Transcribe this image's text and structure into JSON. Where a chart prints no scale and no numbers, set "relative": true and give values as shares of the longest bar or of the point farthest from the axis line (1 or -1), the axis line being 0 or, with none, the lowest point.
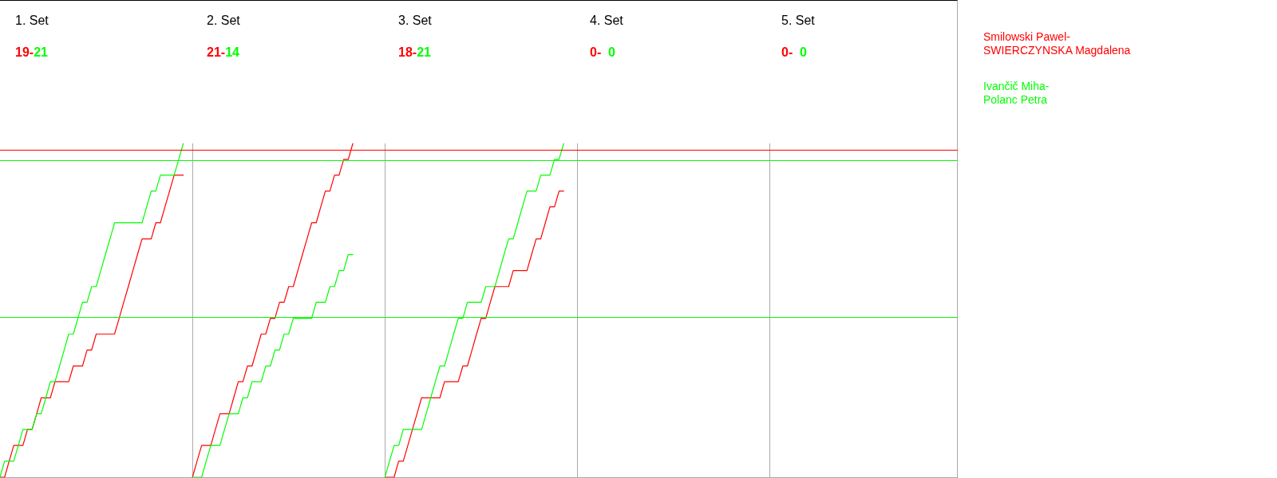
{
  "chart_data": {
    "type": "line",
    "relative": true,
    "legend": "right",
    "grid": true,
    "tick_labels": false,
    "annotations": [
      "1. Set",
      "19-21",
      "2. Set",
      "21-14",
      "3. Set",
      "18-21",
      "4. Set",
      "0-  0",
      "5. Set",
      "0-  0"
    ],
    "categories": [
      null,
      null,
      null,
      null,
      null,
      null,
      null,
      null,
      null,
      null,
      null,
      null,
      null,
      null,
      null,
      null,
      null,
      null,
      null,
      null,
      null,
      null,
      null,
      null,
      null,
      null,
      null,
      null,
      null,
      null,
      null,
      null,
      null,
      null,
      null,
      null,
      null,
      null,
      null,
      null,
      null,
      null,
      null,
      null,
      null,
      null,
      null,
      null,
      null,
      null,
      null,
      null,
      null,
      null,
      null,
      null,
      null,
      null,
      null,
      null,
      null,
      null,
      null,
      null,
      null,
      null,
      null,
      null,
      null,
      null,
      null,
      null,
      null,
      null,
      null,
      null,
      null,
      null,
      null,
      null,
      null,
      null,
      null,
      null,
      null,
      null,
      null,
      null,
      null,
      null,
      null,
      null,
      null,
      null,
      null,
      null,
      null,
      null,
      null,
      null,
      null,
      null,
      null,
      null,
      null,
      null,
      null,
      null,
      null,
      null,
      null,
      null,
      null,
      null,
      null,
      null,
      null,
      null,
      null,
      null,
      null,
      null,
      null,
      null,
      null,
      null,
      null,
      null,
      null,
      null,
      null,
      null,
      null,
      null,
      null,
      null,
      null,
      null,
      null,
      null,
      null,
      null,
      null,
      null,
      null,
      null,
      null,
      null,
      null,
      null,
      null,
      null,
      null,
      null,
      null,
      null,
      null,
      null,
      null,
      null,
      null,
      null,
      null,
      null,
      null,
      null,
      null,
      null,
      null,
      null,
      null,
      null,
      null,
      null,
      null,
      null,
      null,
      null,
      null,
      null,
      null,
      null,
      null,
      null,
      null,
      null,
      null,
      null,
      null,
      null,
      null,
      null,
      null,
      null,
      null,
      null,
      null,
      null,
      null,
      null,
      null,
      null,
      null,
      null,
      null,
      null,
      null,
      null,
      null,
      null
    ],
    "ref_lines": [
      {
        "axis": "y",
        "value": 0.976,
        "color": "#ff0000"
      },
      {
        "axis": "y",
        "value": 0.952,
        "color": "#00ff00"
      },
      {
        "axis": "y",
        "value": 0.476,
        "color": "#00ff00"
      }
    ],
    "series": [
      {
        "name": "Smilowski Pawel-\nSWIERCZYNSKA Magdalena",
        "color": "#ff0000",
        "values": [
          0,
          0,
          0.048,
          0.095,
          0.095,
          0.095,
          0.143,
          0.143,
          0.19,
          0.238,
          0.238,
          0.238,
          0.286,
          0.286,
          0.286,
          0.286,
          0.333,
          0.333,
          0.333,
          0.381,
          0.381,
          0.429,
          0.429,
          0.429,
          0.429,
          0.429,
          0.476,
          0.524,
          0.571,
          0.619,
          0.667,
          0.714,
          0.714,
          0.714,
          0.762,
          0.762,
          0.81,
          0.857,
          0.905,
          0.905,
          0.905,
          null,
          null,
          null,
          null,
          null,
          null,
          null,
          null,
          null,
          null,
          null,
          null,
          null,
          null,
          null,
          null,
          null,
          null,
          null,
          null,
          null,
          null,
          null,
          null,
          null,
          null,
          null,
          null,
          null,
          null,
          null,
          null,
          null,
          null,
          null,
          null,
          null,
          null,
          null,
          null,
          null,
          null,
          null,
          null,
          null,
          null,
          null,
          null,
          null,
          null,
          null,
          null,
          null,
          null,
          null,
          null,
          null,
          null,
          null,
          null,
          null,
          null,
          null,
          null,
          null,
          null,
          null,
          null,
          null,
          null,
          null,
          null,
          null,
          null,
          null,
          null,
          null,
          null,
          null,
          null,
          null,
          null,
          null,
          null,
          null,
          null,
          null,
          null,
          null,
          null,
          null,
          null,
          null,
          null,
          null,
          null,
          null,
          null,
          null,
          null,
          null,
          null,
          null,
          null,
          null,
          null,
          null,
          null,
          null,
          null,
          null,
          null,
          null,
          null,
          null,
          null,
          null,
          null,
          null,
          null,
          null,
          null,
          null,
          null,
          null,
          null,
          null,
          null,
          null,
          null,
          null,
          null,
          null,
          null,
          null,
          null,
          null,
          null,
          null,
          null,
          null,
          null,
          null,
          null,
          null,
          null,
          null,
          null,
          null,
          null,
          null,
          null,
          null,
          null,
          null,
          null,
          null,
          null,
          null,
          null,
          null,
          null,
          null,
          null,
          null,
          null,
          null,
          null,
          null
        ]
      },
      {
        "name": "Ivančič Miha-\nPolanc Petra",
        "color": "#00ff00",
        "values": [
          0,
          0.048,
          0.048,
          0.048,
          0.095,
          0.143,
          0.143,
          0.143,
          0.19,
          0.19,
          0.238,
          0.286,
          0.286,
          0.333,
          0.381,
          0.429,
          0.429,
          0.476,
          0.524,
          0.524,
          0.571,
          0.571,
          0.619,
          0.667,
          0.714,
          0.762,
          0.762,
          0.762,
          0.762,
          0.762,
          0.762,
          0.762,
          0.81,
          0.857,
          0.857,
          0.905,
          0.905,
          0.905,
          0.905,
          0.952,
          1,
          null,
          null,
          null,
          null,
          null,
          null,
          null,
          null,
          null,
          null,
          null,
          null,
          null,
          null,
          null,
          null,
          null,
          null,
          null,
          null,
          null,
          null,
          null,
          null,
          null,
          null,
          null,
          null,
          null,
          null,
          null,
          null,
          null,
          null,
          null,
          null,
          null,
          null,
          null,
          null,
          null,
          null,
          null,
          null,
          null,
          null,
          null,
          null,
          null,
          null,
          null,
          null,
          null,
          null,
          null,
          null,
          null,
          null,
          null,
          null,
          null,
          null,
          null,
          null,
          null,
          null,
          null,
          null,
          null,
          null,
          null,
          null,
          null,
          null,
          null,
          null,
          null,
          null,
          null,
          null,
          null,
          null,
          null,
          null,
          null,
          null,
          null,
          null,
          null,
          null,
          null,
          null,
          null,
          null,
          null,
          null,
          null,
          null,
          null,
          null,
          null,
          null,
          null,
          null,
          null,
          null,
          null,
          null,
          null,
          null,
          null,
          null,
          null,
          null,
          null,
          null,
          null,
          null,
          null,
          null,
          null,
          null,
          null,
          null,
          null,
          null,
          null,
          null,
          null,
          null,
          null,
          null,
          null,
          null,
          null,
          null,
          null,
          null,
          null,
          null,
          null,
          null,
          null,
          null,
          null,
          null,
          null,
          null,
          null,
          null,
          null,
          null,
          null,
          null,
          null,
          null,
          null,
          null,
          null,
          null,
          null,
          null,
          null,
          null,
          null,
          null,
          null,
          null,
          null
        ]
      },
      {
        "color": "#ff0000",
        "values": [
          null,
          null,
          null,
          null,
          null,
          null,
          null,
          null,
          null,
          null,
          null,
          null,
          null,
          null,
          null,
          null,
          null,
          null,
          null,
          null,
          null,
          null,
          null,
          null,
          null,
          null,
          null,
          null,
          null,
          null,
          null,
          null,
          null,
          null,
          null,
          null,
          null,
          null,
          null,
          null,
          null,
          null,
          0,
          0.048,
          0.095,
          0.095,
          0.095,
          0.143,
          0.19,
          0.19,
          0.19,
          0.238,
          0.286,
          0.286,
          0.333,
          0.333,
          0.381,
          0.429,
          0.429,
          0.476,
          0.476,
          0.524,
          0.524,
          0.571,
          0.571,
          0.619,
          0.667,
          0.714,
          0.762,
          0.762,
          0.81,
          0.857,
          0.857,
          0.905,
          0.905,
          0.952,
          0.952,
          1,
          null,
          null,
          null,
          null,
          null,
          null,
          null,
          null,
          null,
          null,
          null,
          null,
          null,
          null,
          null,
          null,
          null,
          null,
          null,
          null,
          null,
          null,
          null,
          null,
          null,
          null,
          null,
          null,
          null,
          null,
          null,
          null,
          null,
          null,
          null,
          null,
          null,
          null,
          null,
          null,
          null,
          null,
          null,
          null,
          null,
          null,
          null,
          null,
          null,
          null,
          null,
          null,
          null,
          null,
          null,
          null,
          null,
          null,
          null,
          null,
          null,
          null,
          null,
          null,
          null,
          null,
          null,
          null,
          null,
          null,
          null,
          null,
          null,
          null,
          null,
          null,
          null,
          null,
          null,
          null,
          null,
          null,
          null,
          null,
          null,
          null,
          null,
          null,
          null,
          null,
          null,
          null,
          null,
          null,
          null,
          null,
          null,
          null,
          null,
          null,
          null,
          null,
          null,
          null,
          null,
          null,
          null,
          null,
          null,
          null,
          null,
          null,
          null,
          null,
          null,
          null,
          null,
          null,
          null,
          null,
          null,
          null,
          null,
          null,
          null,
          null,
          null,
          null,
          null,
          null,
          null,
          null
        ]
      },
      {
        "color": "#00ff00",
        "values": [
          null,
          null,
          null,
          null,
          null,
          null,
          null,
          null,
          null,
          null,
          null,
          null,
          null,
          null,
          null,
          null,
          null,
          null,
          null,
          null,
          null,
          null,
          null,
          null,
          null,
          null,
          null,
          null,
          null,
          null,
          null,
          null,
          null,
          null,
          null,
          null,
          null,
          null,
          null,
          null,
          null,
          null,
          0,
          0,
          0,
          0.048,
          0.095,
          0.095,
          0.095,
          0.143,
          0.19,
          0.19,
          0.19,
          0.238,
          0.238,
          0.286,
          0.286,
          0.286,
          0.333,
          0.333,
          0.381,
          0.381,
          0.429,
          0.429,
          0.476,
          0.476,
          0.476,
          0.476,
          0.476,
          0.524,
          0.524,
          0.524,
          0.571,
          0.571,
          0.619,
          0.619,
          0.667,
          0.667,
          null,
          null,
          null,
          null,
          null,
          null,
          null,
          null,
          null,
          null,
          null,
          null,
          null,
          null,
          null,
          null,
          null,
          null,
          null,
          null,
          null,
          null,
          null,
          null,
          null,
          null,
          null,
          null,
          null,
          null,
          null,
          null,
          null,
          null,
          null,
          null,
          null,
          null,
          null,
          null,
          null,
          null,
          null,
          null,
          null,
          null,
          null,
          null,
          null,
          null,
          null,
          null,
          null,
          null,
          null,
          null,
          null,
          null,
          null,
          null,
          null,
          null,
          null,
          null,
          null,
          null,
          null,
          null,
          null,
          null,
          null,
          null,
          null,
          null,
          null,
          null,
          null,
          null,
          null,
          null,
          null,
          null,
          null,
          null,
          null,
          null,
          null,
          null,
          null,
          null,
          null,
          null,
          null,
          null,
          null,
          null,
          null,
          null,
          null,
          null,
          null,
          null,
          null,
          null,
          null,
          null,
          null,
          null,
          null,
          null,
          null,
          null,
          null,
          null,
          null,
          null,
          null,
          null,
          null,
          null,
          null,
          null,
          null,
          null,
          null,
          null,
          null,
          null,
          null,
          null,
          null,
          null
        ]
      },
      {
        "color": "#ff0000",
        "values": [
          null,
          null,
          null,
          null,
          null,
          null,
          null,
          null,
          null,
          null,
          null,
          null,
          null,
          null,
          null,
          null,
          null,
          null,
          null,
          null,
          null,
          null,
          null,
          null,
          null,
          null,
          null,
          null,
          null,
          null,
          null,
          null,
          null,
          null,
          null,
          null,
          null,
          null,
          null,
          null,
          null,
          null,
          null,
          null,
          null,
          null,
          null,
          null,
          null,
          null,
          null,
          null,
          null,
          null,
          null,
          null,
          null,
          null,
          null,
          null,
          null,
          null,
          null,
          null,
          null,
          null,
          null,
          null,
          null,
          null,
          null,
          null,
          null,
          null,
          null,
          null,
          null,
          null,
          null,
          null,
          null,
          null,
          null,
          null,
          0,
          0,
          0,
          0.048,
          0.048,
          0.095,
          0.143,
          0.19,
          0.238,
          0.238,
          0.238,
          0.238,
          0.238,
          0.286,
          0.286,
          0.286,
          0.286,
          0.333,
          0.333,
          0.381,
          0.429,
          0.476,
          0.476,
          0.524,
          0.571,
          0.571,
          0.571,
          0.571,
          0.619,
          0.619,
          0.619,
          0.619,
          0.667,
          0.714,
          0.714,
          0.762,
          0.81,
          0.81,
          0.857,
          0.857,
          null,
          null,
          null,
          null,
          null,
          null,
          null,
          null,
          null,
          null,
          null,
          null,
          null,
          null,
          null,
          null,
          null,
          null,
          null,
          null,
          null,
          null,
          null,
          null,
          null,
          null,
          null,
          null,
          null,
          null,
          null,
          null,
          null,
          null,
          null,
          null,
          null,
          null,
          null,
          null,
          null,
          null,
          null,
          null,
          null,
          null,
          null,
          null,
          null,
          null,
          null,
          null,
          null,
          null,
          null,
          null,
          null,
          null,
          null,
          null,
          null,
          null,
          null,
          null,
          null,
          null,
          null,
          null,
          null,
          null,
          null,
          null,
          null,
          null,
          null,
          null,
          null,
          null,
          null,
          null,
          null,
          null,
          null,
          null,
          null,
          null
        ]
      },
      {
        "color": "#00ff00",
        "values": [
          null,
          null,
          null,
          null,
          null,
          null,
          null,
          null,
          null,
          null,
          null,
          null,
          null,
          null,
          null,
          null,
          null,
          null,
          null,
          null,
          null,
          null,
          null,
          null,
          null,
          null,
          null,
          null,
          null,
          null,
          null,
          null,
          null,
          null,
          null,
          null,
          null,
          null,
          null,
          null,
          null,
          null,
          null,
          null,
          null,
          null,
          null,
          null,
          null,
          null,
          null,
          null,
          null,
          null,
          null,
          null,
          null,
          null,
          null,
          null,
          null,
          null,
          null,
          null,
          null,
          null,
          null,
          null,
          null,
          null,
          null,
          null,
          null,
          null,
          null,
          null,
          null,
          null,
          null,
          null,
          null,
          null,
          null,
          null,
          0,
          0.048,
          0.095,
          0.095,
          0.143,
          0.143,
          0.143,
          0.143,
          0.143,
          0.19,
          0.238,
          0.286,
          0.333,
          0.333,
          0.381,
          0.429,
          0.476,
          0.476,
          0.524,
          0.524,
          0.524,
          0.524,
          0.571,
          0.571,
          0.571,
          0.619,
          0.667,
          0.714,
          0.714,
          0.762,
          0.81,
          0.857,
          0.857,
          0.857,
          0.905,
          0.905,
          0.905,
          0.952,
          0.952,
          1,
          null,
          null,
          null,
          null,
          null,
          null,
          null,
          null,
          null,
          null,
          null,
          null,
          null,
          null,
          null,
          null,
          null,
          null,
          null,
          null,
          null,
          null,
          null,
          null,
          null,
          null,
          null,
          null,
          null,
          null,
          null,
          null,
          null,
          null,
          null,
          null,
          null,
          null,
          null,
          null,
          null,
          null,
          null,
          null,
          null,
          null,
          null,
          null,
          null,
          null,
          null,
          null,
          null,
          null,
          null,
          null,
          null,
          null,
          null,
          null,
          null,
          null,
          null,
          null,
          null,
          null,
          null,
          null,
          null,
          null,
          null,
          null,
          null,
          null,
          null,
          null,
          null,
          null,
          null,
          null,
          null,
          null,
          null,
          null,
          null,
          null
        ]
      }
    ]
  }
}
